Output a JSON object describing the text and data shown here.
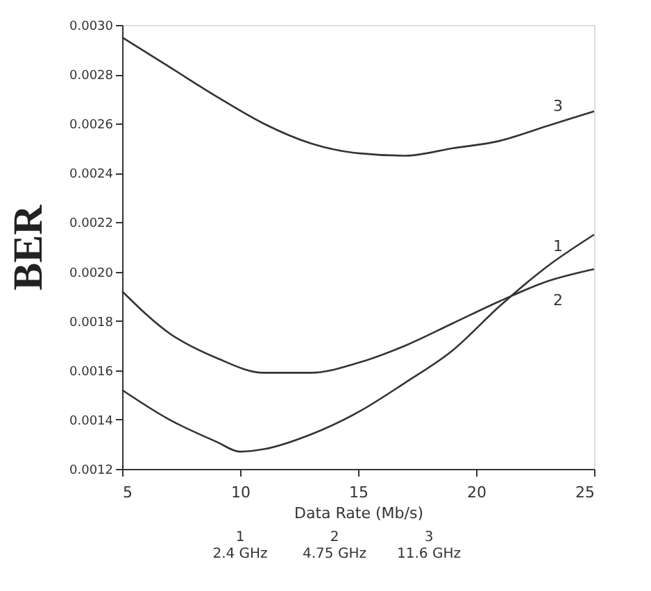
{
  "chart_data": {
    "type": "line",
    "xlabel": "Data Rate (Mb/s)",
    "ylabel": "BER",
    "x": [
      5,
      7,
      9,
      11,
      13,
      15,
      17,
      19,
      21,
      23,
      25
    ],
    "series": [
      {
        "name": "1",
        "color": "#333333",
        "x": [
          5,
          7,
          9,
          10,
          11,
          13,
          15,
          17,
          19,
          21,
          23,
          25
        ],
        "values": [
          0.00152,
          0.0014,
          0.00131,
          0.00127,
          0.00128,
          0.00134,
          0.00143,
          0.00155,
          0.00168,
          0.00186,
          0.00202,
          0.00215
        ]
      },
      {
        "name": "2",
        "color": "#333333",
        "values": [
          0.00192,
          0.00175,
          0.00165,
          0.00159,
          0.00159,
          0.00163,
          0.0017,
          0.00179,
          0.00188,
          0.00196,
          0.00201
        ]
      },
      {
        "name": "3",
        "color": "#333333",
        "values": [
          0.00295,
          0.00283,
          0.00271,
          0.0026,
          0.00252,
          0.00248,
          0.00247,
          0.0025,
          0.00253,
          0.00259,
          0.00265
        ]
      }
    ],
    "xlim": [
      5,
      25
    ],
    "xticks": [
      5,
      10,
      15,
      20,
      25
    ],
    "ylim": [
      0.0012,
      0.003
    ],
    "yticks": [
      {
        "value": 0.0012,
        "label": "0.0012"
      },
      {
        "value": 0.0014,
        "label": "0.0014"
      },
      {
        "value": 0.0016,
        "label": "0.0016"
      },
      {
        "value": 0.0018,
        "label": "0.0018"
      },
      {
        "value": 0.002,
        "label": "0.0020"
      },
      {
        "value": 0.0022,
        "label": "0.0022"
      },
      {
        "value": 0.0024,
        "label": "0.0024"
      },
      {
        "value": 0.0026,
        "label": "0.0026"
      },
      {
        "value": 0.0028,
        "label": "0.0028"
      },
      {
        "value": 0.003,
        "label": "0.0030"
      }
    ],
    "annotations": [
      "1\n2.4 GHz",
      "2\n4.75 GHz",
      "3\n11.6 GHz"
    ],
    "grid": false,
    "marker": "none",
    "line_style": "solid"
  }
}
